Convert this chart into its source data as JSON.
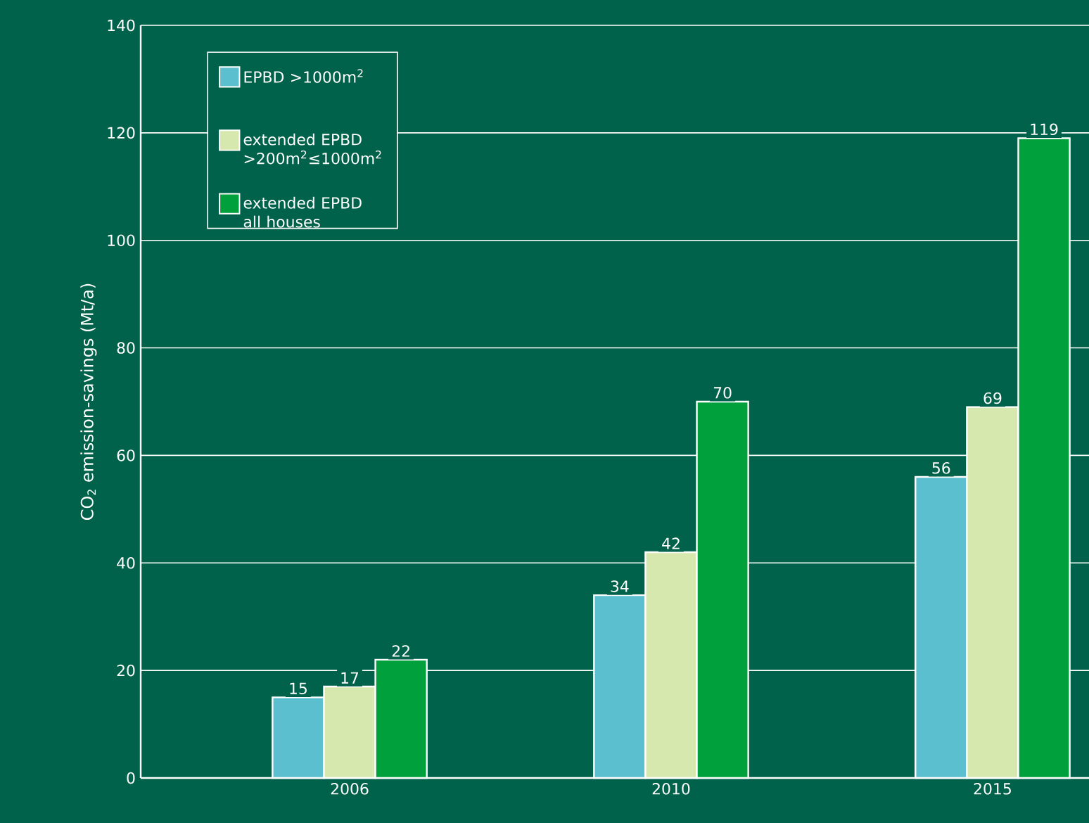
{
  "chart_data": {
    "type": "bar",
    "ylabel": "CO$_{2}$ emission-savings (Mt/a)",
    "categories": [
      "2006",
      "2010",
      "2015"
    ],
    "series": [
      {
        "name": "EPBD >1000m$^{2}$",
        "color": "#5bbfd0",
        "values": [
          15,
          34,
          56
        ]
      },
      {
        "name": "extended EPBD >200m$^{2}$≤1000m$^{2}$",
        "color": "#d6e8ae",
        "values": [
          17,
          42,
          69
        ]
      },
      {
        "name": "extended EPBD all houses",
        "color": "#00a03c",
        "values": [
          22,
          70,
          119
        ]
      }
    ],
    "ylim": [
      0,
      140
    ],
    "yticks": [
      0,
      20,
      40,
      60,
      80,
      100,
      120,
      140
    ],
    "grid": "y",
    "legend": "top left",
    "data_labels": true
  }
}
